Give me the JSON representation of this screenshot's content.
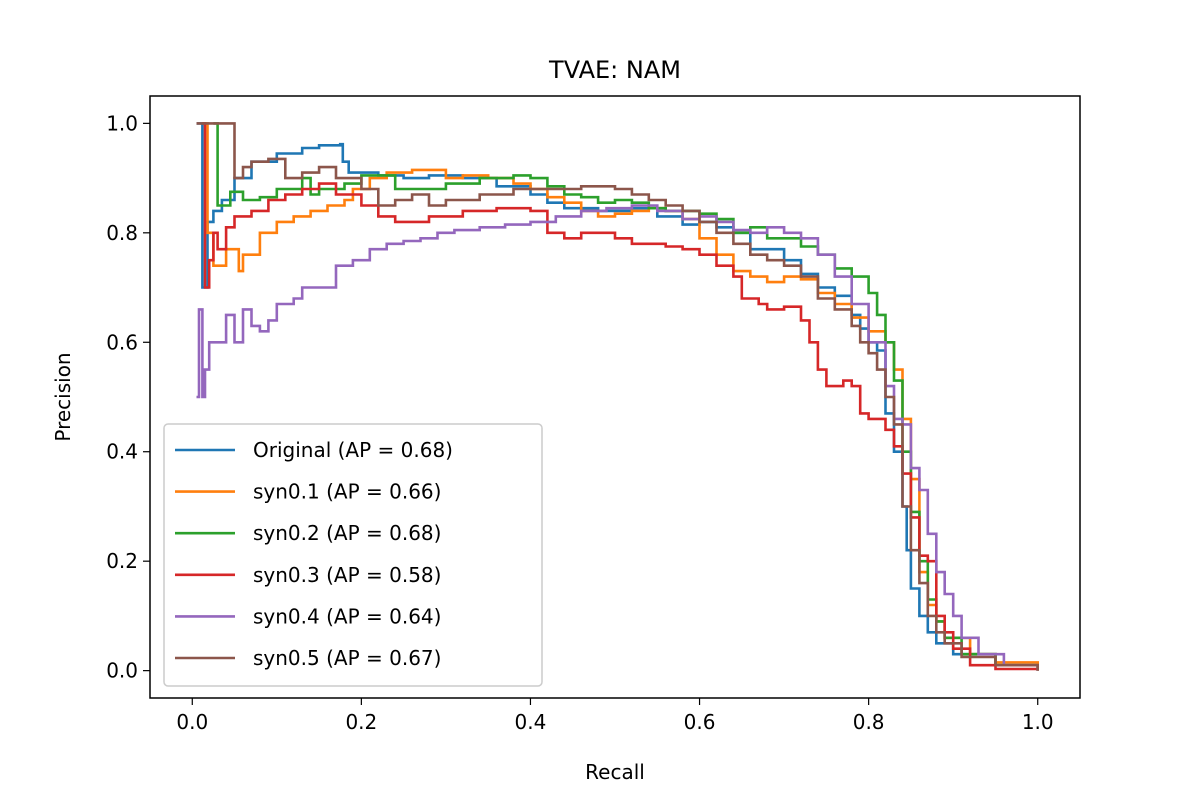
{
  "chart_data": {
    "type": "line",
    "title": "TVAE: NAM",
    "xlabel": "Recall",
    "ylabel": "Precision",
    "xlim": [
      -0.05,
      1.05
    ],
    "ylim": [
      -0.05,
      1.05
    ],
    "xticks": [
      0.0,
      0.2,
      0.4,
      0.6,
      0.8,
      1.0
    ],
    "yticks": [
      0.0,
      0.2,
      0.4,
      0.6,
      0.8,
      1.0
    ],
    "xtick_labels": [
      "0.0",
      "0.2",
      "0.4",
      "0.6",
      "0.8",
      "1.0"
    ],
    "ytick_labels": [
      "0.0",
      "0.2",
      "0.4",
      "0.6",
      "0.8",
      "1.0"
    ],
    "legend_position": "lower-left",
    "grid": false,
    "step": true,
    "series": [
      {
        "name": "Original (AP = 0.68)",
        "color": "#1f77b4",
        "points": [
          [
            0.005,
            1.0
          ],
          [
            0.012,
            0.7
          ],
          [
            0.018,
            0.82
          ],
          [
            0.025,
            0.84
          ],
          [
            0.035,
            0.86
          ],
          [
            0.05,
            0.9
          ],
          [
            0.07,
            0.93
          ],
          [
            0.1,
            0.945
          ],
          [
            0.13,
            0.955
          ],
          [
            0.15,
            0.96
          ],
          [
            0.175,
            0.962
          ],
          [
            0.178,
            0.93
          ],
          [
            0.185,
            0.91
          ],
          [
            0.22,
            0.905
          ],
          [
            0.25,
            0.9
          ],
          [
            0.28,
            0.905
          ],
          [
            0.32,
            0.9
          ],
          [
            0.36,
            0.885
          ],
          [
            0.4,
            0.87
          ],
          [
            0.42,
            0.855
          ],
          [
            0.44,
            0.845
          ],
          [
            0.48,
            0.84
          ],
          [
            0.52,
            0.845
          ],
          [
            0.55,
            0.83
          ],
          [
            0.58,
            0.815
          ],
          [
            0.6,
            0.82
          ],
          [
            0.62,
            0.81
          ],
          [
            0.64,
            0.8
          ],
          [
            0.66,
            0.77
          ],
          [
            0.68,
            0.77
          ],
          [
            0.7,
            0.75
          ],
          [
            0.72,
            0.725
          ],
          [
            0.74,
            0.7
          ],
          [
            0.76,
            0.685
          ],
          [
            0.78,
            0.65
          ],
          [
            0.79,
            0.625
          ],
          [
            0.8,
            0.6
          ],
          [
            0.81,
            0.585
          ],
          [
            0.82,
            0.47
          ],
          [
            0.83,
            0.4
          ],
          [
            0.84,
            0.3
          ],
          [
            0.845,
            0.22
          ],
          [
            0.85,
            0.15
          ],
          [
            0.86,
            0.1
          ],
          [
            0.87,
            0.07
          ],
          [
            0.88,
            0.05
          ],
          [
            0.9,
            0.03
          ],
          [
            0.95,
            0.01
          ],
          [
            1.0,
            0.0
          ]
        ]
      },
      {
        "name": "syn0.1 (AP = 0.66)",
        "color": "#ff7f0e",
        "points": [
          [
            0.012,
            1.0
          ],
          [
            0.018,
            0.8
          ],
          [
            0.025,
            0.74
          ],
          [
            0.04,
            0.77
          ],
          [
            0.055,
            0.73
          ],
          [
            0.06,
            0.76
          ],
          [
            0.08,
            0.8
          ],
          [
            0.1,
            0.82
          ],
          [
            0.12,
            0.83
          ],
          [
            0.14,
            0.84
          ],
          [
            0.16,
            0.85
          ],
          [
            0.18,
            0.86
          ],
          [
            0.19,
            0.88
          ],
          [
            0.21,
            0.9
          ],
          [
            0.23,
            0.91
          ],
          [
            0.26,
            0.915
          ],
          [
            0.3,
            0.9
          ],
          [
            0.32,
            0.905
          ],
          [
            0.35,
            0.9
          ],
          [
            0.38,
            0.89
          ],
          [
            0.4,
            0.88
          ],
          [
            0.42,
            0.865
          ],
          [
            0.44,
            0.855
          ],
          [
            0.46,
            0.84
          ],
          [
            0.48,
            0.83
          ],
          [
            0.5,
            0.835
          ],
          [
            0.52,
            0.84
          ],
          [
            0.54,
            0.845
          ],
          [
            0.56,
            0.84
          ],
          [
            0.58,
            0.825
          ],
          [
            0.6,
            0.79
          ],
          [
            0.62,
            0.76
          ],
          [
            0.64,
            0.73
          ],
          [
            0.66,
            0.72
          ],
          [
            0.68,
            0.71
          ],
          [
            0.7,
            0.72
          ],
          [
            0.72,
            0.715
          ],
          [
            0.74,
            0.69
          ],
          [
            0.76,
            0.67
          ],
          [
            0.78,
            0.645
          ],
          [
            0.8,
            0.62
          ],
          [
            0.82,
            0.6
          ],
          [
            0.83,
            0.55
          ],
          [
            0.84,
            0.46
          ],
          [
            0.85,
            0.35
          ],
          [
            0.86,
            0.18
          ],
          [
            0.87,
            0.12
          ],
          [
            0.88,
            0.09
          ],
          [
            0.89,
            0.06
          ],
          [
            0.92,
            0.03
          ],
          [
            0.95,
            0.015
          ],
          [
            1.0,
            0.0
          ]
        ]
      },
      {
        "name": "syn0.2 (AP = 0.68)",
        "color": "#2ca02c",
        "points": [
          [
            0.025,
            1.0
          ],
          [
            0.03,
            0.85
          ],
          [
            0.045,
            0.875
          ],
          [
            0.06,
            0.86
          ],
          [
            0.08,
            0.865
          ],
          [
            0.1,
            0.88
          ],
          [
            0.13,
            0.9
          ],
          [
            0.14,
            0.87
          ],
          [
            0.15,
            0.88
          ],
          [
            0.18,
            0.89
          ],
          [
            0.2,
            0.905
          ],
          [
            0.24,
            0.88
          ],
          [
            0.27,
            0.88
          ],
          [
            0.3,
            0.89
          ],
          [
            0.34,
            0.9
          ],
          [
            0.38,
            0.905
          ],
          [
            0.4,
            0.9
          ],
          [
            0.42,
            0.885
          ],
          [
            0.44,
            0.87
          ],
          [
            0.46,
            0.865
          ],
          [
            0.48,
            0.855
          ],
          [
            0.5,
            0.86
          ],
          [
            0.52,
            0.855
          ],
          [
            0.54,
            0.845
          ],
          [
            0.56,
            0.84
          ],
          [
            0.58,
            0.84
          ],
          [
            0.6,
            0.835
          ],
          [
            0.62,
            0.825
          ],
          [
            0.64,
            0.8
          ],
          [
            0.66,
            0.81
          ],
          [
            0.68,
            0.79
          ],
          [
            0.7,
            0.79
          ],
          [
            0.72,
            0.775
          ],
          [
            0.74,
            0.76
          ],
          [
            0.76,
            0.735
          ],
          [
            0.78,
            0.72
          ],
          [
            0.8,
            0.69
          ],
          [
            0.81,
            0.65
          ],
          [
            0.82,
            0.6
          ],
          [
            0.83,
            0.53
          ],
          [
            0.84,
            0.4
          ],
          [
            0.85,
            0.29
          ],
          [
            0.86,
            0.2
          ],
          [
            0.87,
            0.13
          ],
          [
            0.88,
            0.09
          ],
          [
            0.89,
            0.06
          ],
          [
            0.91,
            0.03
          ],
          [
            0.95,
            0.01
          ],
          [
            1.0,
            0.0
          ]
        ]
      },
      {
        "name": "syn0.3 (AP = 0.58)",
        "color": "#d62728",
        "points": [
          [
            0.012,
            1.0
          ],
          [
            0.015,
            0.7
          ],
          [
            0.02,
            0.75
          ],
          [
            0.025,
            0.8
          ],
          [
            0.03,
            0.77
          ],
          [
            0.04,
            0.81
          ],
          [
            0.05,
            0.83
          ],
          [
            0.07,
            0.84
          ],
          [
            0.09,
            0.86
          ],
          [
            0.11,
            0.87
          ],
          [
            0.13,
            0.88
          ],
          [
            0.15,
            0.89
          ],
          [
            0.17,
            0.87
          ],
          [
            0.2,
            0.85
          ],
          [
            0.22,
            0.83
          ],
          [
            0.24,
            0.82
          ],
          [
            0.28,
            0.83
          ],
          [
            0.32,
            0.84
          ],
          [
            0.36,
            0.845
          ],
          [
            0.4,
            0.84
          ],
          [
            0.42,
            0.8
          ],
          [
            0.44,
            0.79
          ],
          [
            0.46,
            0.8
          ],
          [
            0.5,
            0.79
          ],
          [
            0.52,
            0.78
          ],
          [
            0.56,
            0.775
          ],
          [
            0.58,
            0.77
          ],
          [
            0.6,
            0.76
          ],
          [
            0.62,
            0.74
          ],
          [
            0.64,
            0.72
          ],
          [
            0.65,
            0.68
          ],
          [
            0.67,
            0.67
          ],
          [
            0.68,
            0.66
          ],
          [
            0.7,
            0.665
          ],
          [
            0.72,
            0.64
          ],
          [
            0.73,
            0.6
          ],
          [
            0.74,
            0.55
          ],
          [
            0.75,
            0.52
          ],
          [
            0.77,
            0.53
          ],
          [
            0.78,
            0.52
          ],
          [
            0.79,
            0.47
          ],
          [
            0.8,
            0.46
          ],
          [
            0.82,
            0.44
          ],
          [
            0.83,
            0.41
          ],
          [
            0.84,
            0.36
          ],
          [
            0.85,
            0.28
          ],
          [
            0.86,
            0.21
          ],
          [
            0.87,
            0.2
          ],
          [
            0.88,
            0.1
          ],
          [
            0.89,
            0.07
          ],
          [
            0.9,
            0.04
          ],
          [
            0.92,
            0.01
          ],
          [
            0.95,
            0.003
          ],
          [
            1.0,
            0.0
          ]
        ]
      },
      {
        "name": "syn0.4 (AP = 0.64)",
        "color": "#9467bd",
        "points": [
          [
            0.005,
            0.5
          ],
          [
            0.008,
            0.66
          ],
          [
            0.012,
            0.5
          ],
          [
            0.015,
            0.55
          ],
          [
            0.02,
            0.6
          ],
          [
            0.03,
            0.6
          ],
          [
            0.04,
            0.65
          ],
          [
            0.05,
            0.6
          ],
          [
            0.06,
            0.66
          ],
          [
            0.07,
            0.63
          ],
          [
            0.08,
            0.62
          ],
          [
            0.09,
            0.64
          ],
          [
            0.1,
            0.67
          ],
          [
            0.12,
            0.68
          ],
          [
            0.13,
            0.7
          ],
          [
            0.15,
            0.7
          ],
          [
            0.17,
            0.74
          ],
          [
            0.19,
            0.75
          ],
          [
            0.21,
            0.77
          ],
          [
            0.23,
            0.78
          ],
          [
            0.25,
            0.785
          ],
          [
            0.27,
            0.79
          ],
          [
            0.29,
            0.8
          ],
          [
            0.31,
            0.805
          ],
          [
            0.34,
            0.81
          ],
          [
            0.37,
            0.815
          ],
          [
            0.4,
            0.82
          ],
          [
            0.43,
            0.83
          ],
          [
            0.46,
            0.84
          ],
          [
            0.49,
            0.845
          ],
          [
            0.52,
            0.85
          ],
          [
            0.55,
            0.84
          ],
          [
            0.58,
            0.825
          ],
          [
            0.6,
            0.83
          ],
          [
            0.62,
            0.82
          ],
          [
            0.64,
            0.805
          ],
          [
            0.66,
            0.8
          ],
          [
            0.68,
            0.81
          ],
          [
            0.7,
            0.8
          ],
          [
            0.72,
            0.79
          ],
          [
            0.74,
            0.76
          ],
          [
            0.76,
            0.72
          ],
          [
            0.78,
            0.67
          ],
          [
            0.8,
            0.6
          ],
          [
            0.82,
            0.52
          ],
          [
            0.83,
            0.46
          ],
          [
            0.84,
            0.45
          ],
          [
            0.85,
            0.37
          ],
          [
            0.86,
            0.33
          ],
          [
            0.87,
            0.25
          ],
          [
            0.88,
            0.18
          ],
          [
            0.89,
            0.14
          ],
          [
            0.9,
            0.1
          ],
          [
            0.91,
            0.06
          ],
          [
            0.93,
            0.03
          ],
          [
            0.96,
            0.01
          ],
          [
            1.0,
            0.0
          ]
        ]
      },
      {
        "name": "syn0.5 (AP = 0.67)",
        "color": "#8c564b",
        "points": [
          [
            0.005,
            1.0
          ],
          [
            0.05,
            0.9
          ],
          [
            0.06,
            0.92
          ],
          [
            0.07,
            0.93
          ],
          [
            0.09,
            0.935
          ],
          [
            0.11,
            0.9
          ],
          [
            0.13,
            0.91
          ],
          [
            0.15,
            0.92
          ],
          [
            0.17,
            0.9
          ],
          [
            0.2,
            0.88
          ],
          [
            0.22,
            0.85
          ],
          [
            0.24,
            0.86
          ],
          [
            0.26,
            0.87
          ],
          [
            0.28,
            0.85
          ],
          [
            0.3,
            0.86
          ],
          [
            0.34,
            0.87
          ],
          [
            0.38,
            0.88
          ],
          [
            0.42,
            0.88
          ],
          [
            0.46,
            0.885
          ],
          [
            0.5,
            0.88
          ],
          [
            0.52,
            0.87
          ],
          [
            0.54,
            0.86
          ],
          [
            0.56,
            0.85
          ],
          [
            0.58,
            0.84
          ],
          [
            0.6,
            0.82
          ],
          [
            0.62,
            0.8
          ],
          [
            0.64,
            0.78
          ],
          [
            0.66,
            0.76
          ],
          [
            0.68,
            0.75
          ],
          [
            0.7,
            0.74
          ],
          [
            0.72,
            0.72
          ],
          [
            0.74,
            0.68
          ],
          [
            0.76,
            0.66
          ],
          [
            0.78,
            0.63
          ],
          [
            0.79,
            0.6
          ],
          [
            0.8,
            0.58
          ],
          [
            0.81,
            0.55
          ],
          [
            0.82,
            0.5
          ],
          [
            0.83,
            0.45
          ],
          [
            0.84,
            0.3
          ],
          [
            0.85,
            0.22
          ],
          [
            0.86,
            0.16
          ],
          [
            0.87,
            0.1
          ],
          [
            0.88,
            0.07
          ],
          [
            0.89,
            0.05
          ],
          [
            0.91,
            0.025
          ],
          [
            0.95,
            0.01
          ],
          [
            1.0,
            0.0
          ]
        ]
      }
    ]
  }
}
